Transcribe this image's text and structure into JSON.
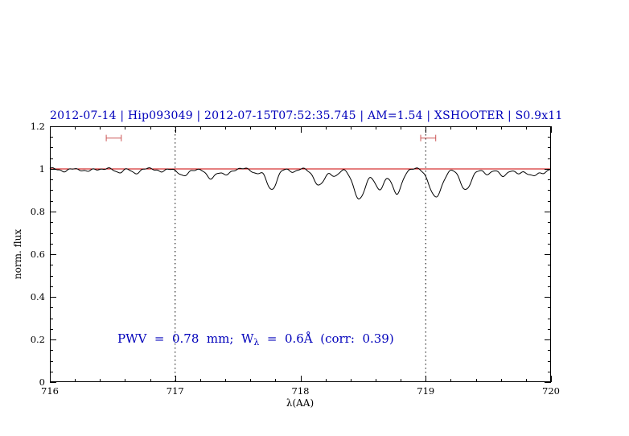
{
  "page": {
    "background": "#ffffff"
  },
  "chart_data": {
    "type": "line",
    "title": "2012-07-14 | Hip093049 | 2012-07-15T07:52:35.745 | AM=1.54 | XSHOOTER | S0.9x11",
    "title_color": "#0000bb",
    "xlabel": "λ(AA)",
    "ylabel": "norm. flux",
    "xlim": [
      716,
      720
    ],
    "ylim": [
      0,
      1.2
    ],
    "x_ticks": [
      "716",
      "717",
      "718",
      "719",
      "720"
    ],
    "x_tick_values": [
      716,
      717,
      718,
      719,
      720
    ],
    "y_ticks": [
      "0",
      "0.2",
      "0.4",
      "0.6",
      "0.8",
      "1",
      "1.2"
    ],
    "y_tick_values": [
      0,
      0.2,
      0.4,
      0.6,
      0.8,
      1,
      1.2
    ],
    "x_minor_step": 0.2,
    "y_minor_step": 0.05,
    "grid": "off",
    "vlines": {
      "style": "dotted",
      "color": "#000000",
      "positions": [
        717,
        719
      ]
    },
    "continuum": {
      "y": 1.0,
      "color": "#cc0000"
    },
    "range_markers": {
      "color": "#cc5555",
      "y": 1.145,
      "ranges": [
        [
          716.45,
          716.57
        ],
        [
          718.96,
          719.08
        ]
      ]
    },
    "annotation": {
      "pre": "PWV  =  0.78  mm;  W",
      "sub": "λ",
      "post": "  =  0.6Å  (corr:  0.39)",
      "color": "#0000bb",
      "x": 716.55,
      "y": 0.2
    },
    "spectrum": {
      "color": "#000000",
      "baseline": 1.0,
      "noise_amp": 0.0035,
      "sample_step": 0.005,
      "lines": [
        {
          "center": 716.12,
          "depth": 0.01,
          "sigma": 0.03
        },
        {
          "center": 716.3,
          "depth": 0.012,
          "sigma": 0.03
        },
        {
          "center": 716.55,
          "depth": 0.015,
          "sigma": 0.03
        },
        {
          "center": 716.68,
          "depth": 0.02,
          "sigma": 0.03
        },
        {
          "center": 716.9,
          "depth": 0.012,
          "sigma": 0.03
        },
        {
          "center": 717.07,
          "depth": 0.035,
          "sigma": 0.035
        },
        {
          "center": 717.28,
          "depth": 0.045,
          "sigma": 0.035
        },
        {
          "center": 717.4,
          "depth": 0.03,
          "sigma": 0.035
        },
        {
          "center": 717.65,
          "depth": 0.02,
          "sigma": 0.03
        },
        {
          "center": 717.77,
          "depth": 0.095,
          "sigma": 0.04
        },
        {
          "center": 717.95,
          "depth": 0.012,
          "sigma": 0.03
        },
        {
          "center": 718.15,
          "depth": 0.08,
          "sigma": 0.04
        },
        {
          "center": 718.28,
          "depth": 0.035,
          "sigma": 0.03
        },
        {
          "center": 718.47,
          "depth": 0.145,
          "sigma": 0.045
        },
        {
          "center": 718.63,
          "depth": 0.1,
          "sigma": 0.038
        },
        {
          "center": 718.77,
          "depth": 0.12,
          "sigma": 0.038
        },
        {
          "center": 719.08,
          "depth": 0.135,
          "sigma": 0.048
        },
        {
          "center": 719.32,
          "depth": 0.095,
          "sigma": 0.045
        },
        {
          "center": 719.5,
          "depth": 0.025,
          "sigma": 0.03
        },
        {
          "center": 719.62,
          "depth": 0.03,
          "sigma": 0.035
        },
        {
          "center": 719.73,
          "depth": 0.02,
          "sigma": 0.03
        },
        {
          "center": 719.85,
          "depth": 0.035,
          "sigma": 0.04
        },
        {
          "center": 719.95,
          "depth": 0.015,
          "sigma": 0.03
        }
      ]
    }
  }
}
